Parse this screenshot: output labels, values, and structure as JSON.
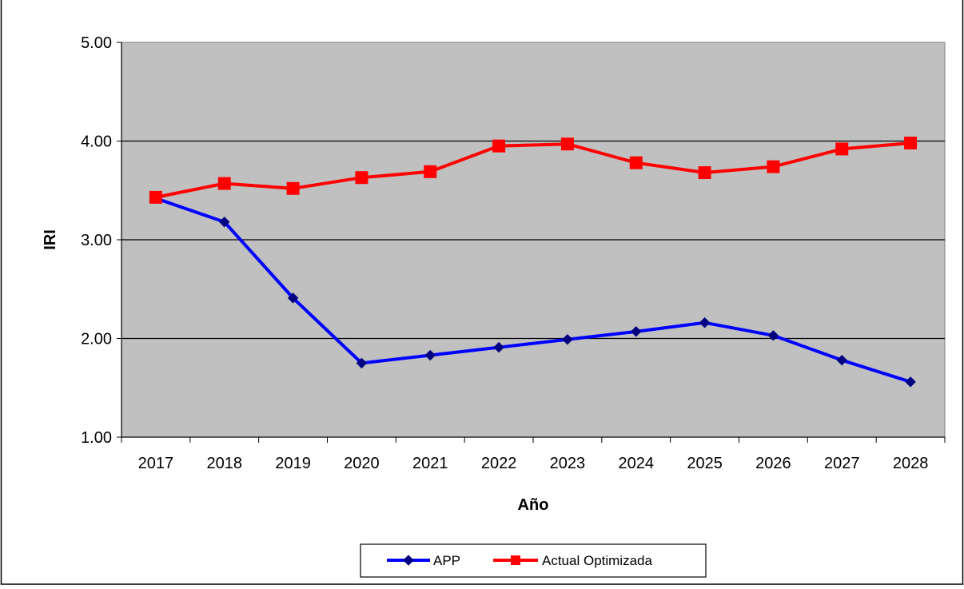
{
  "chart_data": {
    "type": "line",
    "title": "",
    "xlabel": "Año",
    "ylabel": "IRI",
    "categories": [
      "2017",
      "2018",
      "2019",
      "2020",
      "2021",
      "2022",
      "2023",
      "2024",
      "2025",
      "2026",
      "2027",
      "2028"
    ],
    "ylim": [
      1.0,
      5.0
    ],
    "yticks": [
      "1.00",
      "2.00",
      "3.00",
      "4.00",
      "5.00"
    ],
    "grid": true,
    "legend_position": "bottom-center",
    "plot_background": "#c0c0c0",
    "series": [
      {
        "name": "APP",
        "color": "#0000ff",
        "marker": "diamond",
        "values": [
          3.42,
          3.18,
          2.41,
          1.75,
          1.83,
          1.91,
          1.99,
          2.07,
          2.16,
          2.03,
          1.78,
          1.56
        ]
      },
      {
        "name": "Actual Optimizada",
        "color": "#ff0000",
        "marker": "square",
        "values": [
          3.43,
          3.57,
          3.52,
          3.63,
          3.69,
          3.95,
          3.97,
          3.78,
          3.68,
          3.74,
          3.92,
          3.98
        ]
      }
    ]
  }
}
